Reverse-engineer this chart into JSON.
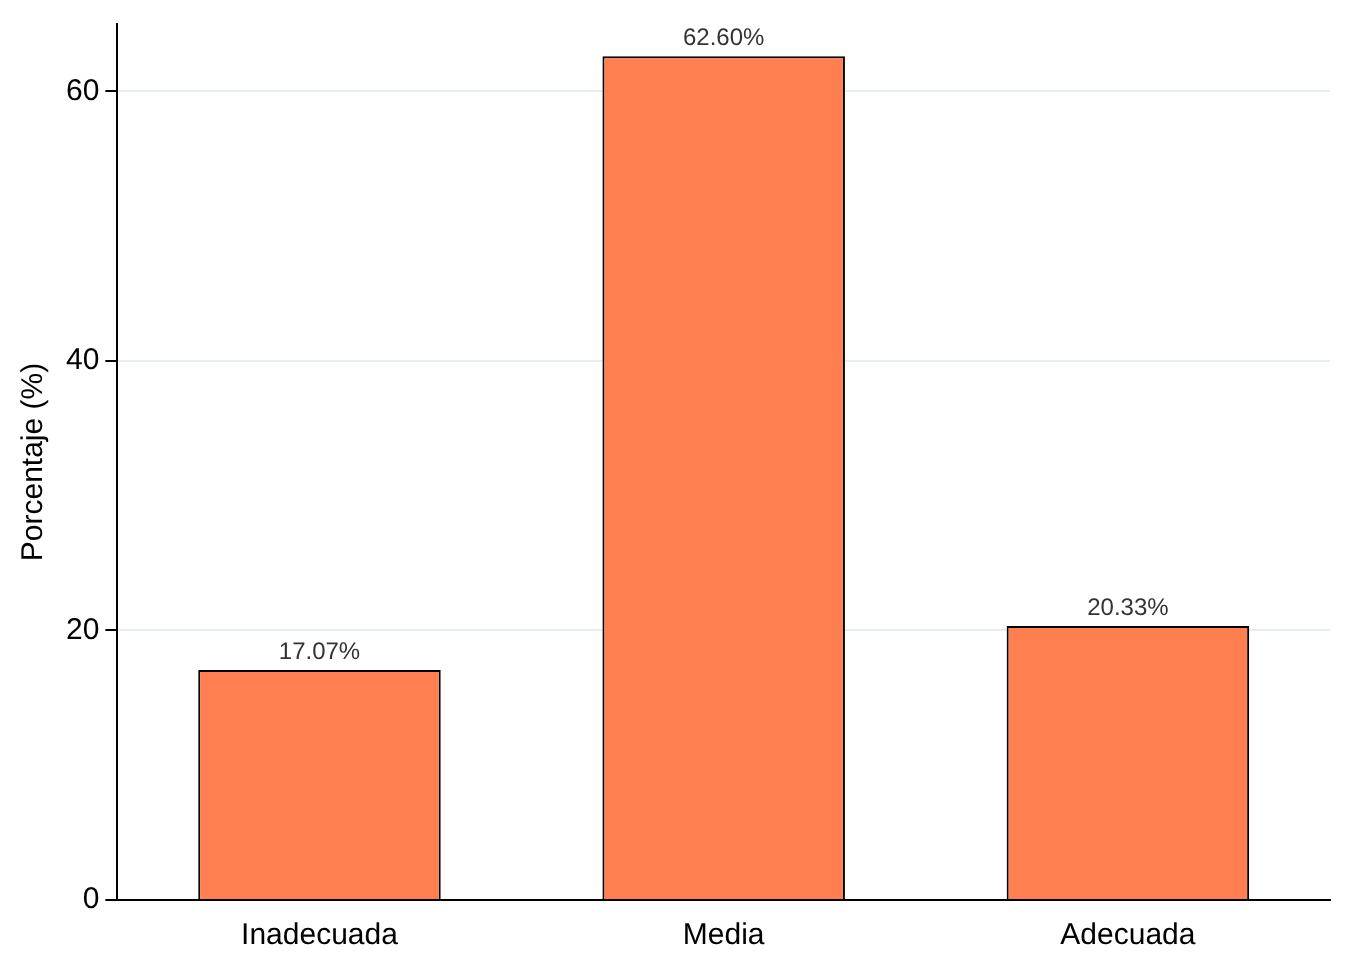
{
  "chart_data": {
    "type": "bar",
    "ylabel": "Porcentaje (%)",
    "categories": [
      "Inadecuada",
      "Media",
      "Adecuada"
    ],
    "values": [
      17.07,
      62.6,
      20.33
    ],
    "value_labels": [
      "17.07%",
      "62.60%",
      "20.33%"
    ],
    "color": "#ff7f50",
    "ylim": [
      0,
      65
    ],
    "yticks": [
      0,
      20,
      40,
      60
    ],
    "grid": "y",
    "legend": false
  }
}
